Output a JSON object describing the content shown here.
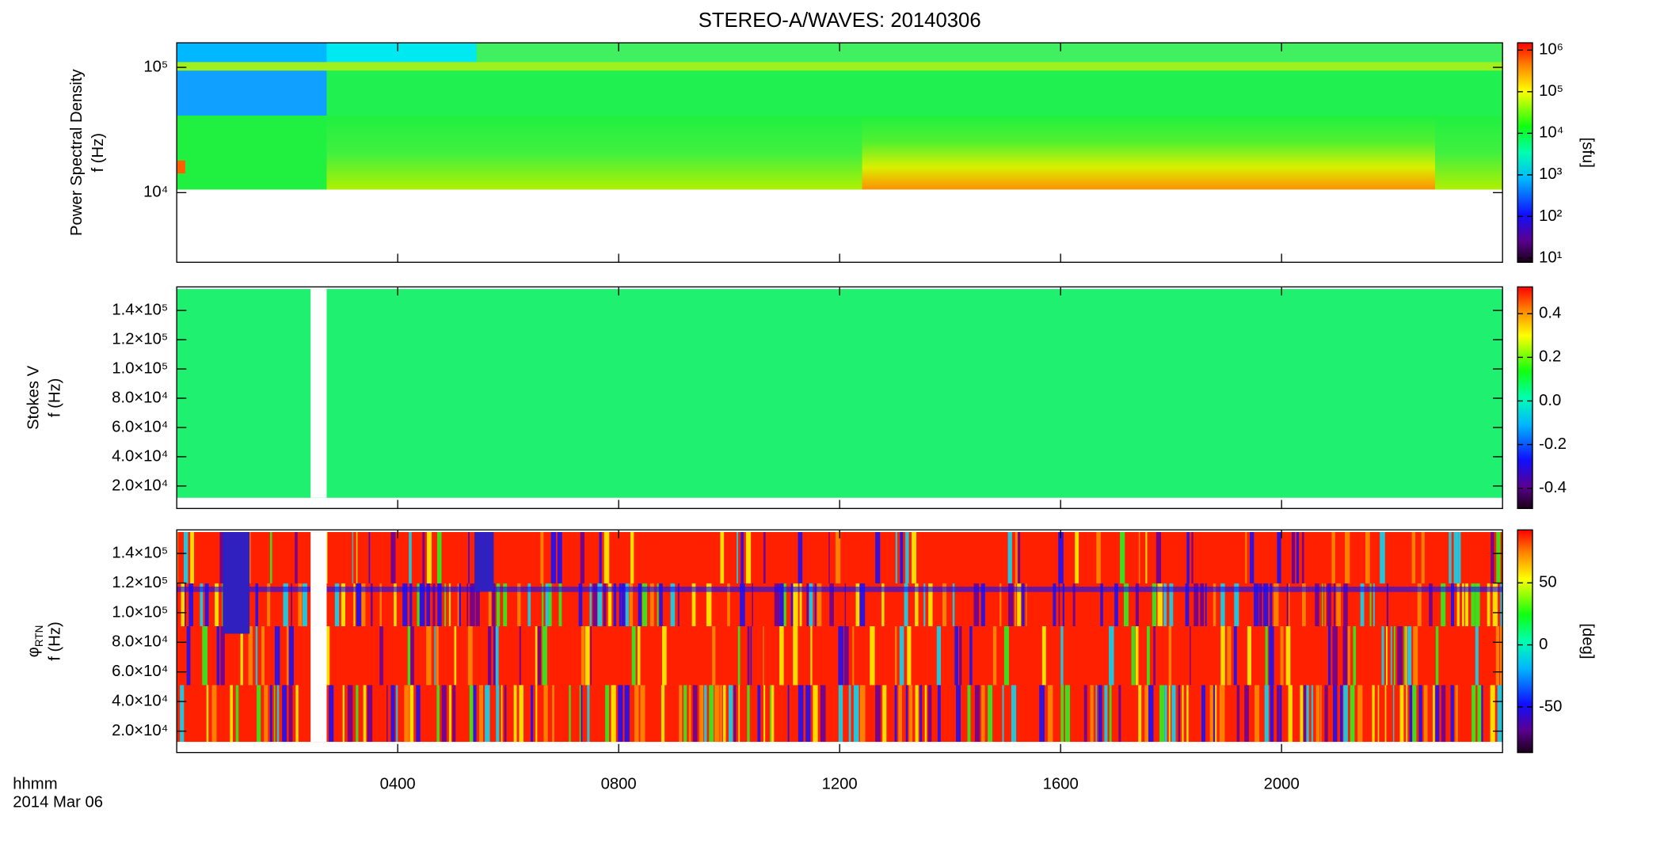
{
  "chart_data": [
    {
      "type": "heatmap",
      "title": "STEREO-A/WAVES: 20140306",
      "ylabel_top": "Power Spectral Density",
      "ylabel": "f (Hz)",
      "yscale": "log",
      "ylim": [
        2780,
        157000
      ],
      "yticks": [
        {
          "value": 10000,
          "label": "10⁴"
        },
        {
          "value": 100000,
          "label": "10⁵"
        }
      ],
      "xlim": [
        0,
        24
      ],
      "xticks": [
        {
          "value": 4,
          "label": "0400"
        },
        {
          "value": 8,
          "label": "0800"
        },
        {
          "value": 12,
          "label": "1200"
        },
        {
          "value": 16,
          "label": "1600"
        },
        {
          "value": 20,
          "label": "2000"
        }
      ],
      "colorbar": {
        "label": "[sfu]",
        "scale": "log",
        "lim": [
          7.9,
          1500000
        ],
        "ticks": [
          {
            "value": 10,
            "label": "10¹"
          },
          {
            "value": 100,
            "label": "10²"
          },
          {
            "value": 1000,
            "label": "10³"
          },
          {
            "value": 10000,
            "label": "10⁴"
          },
          {
            "value": 100000,
            "label": "10⁵"
          },
          {
            "value": 1000000,
            "label": "10⁶"
          }
        ]
      }
    },
    {
      "type": "heatmap",
      "quantity": "Stokes V",
      "ylabel": "f (Hz)",
      "yscale": "linear",
      "ylim": [
        4630,
        156100
      ],
      "yticks": [
        {
          "value": 20000,
          "label": "2.0×10⁴"
        },
        {
          "value": 40000,
          "label": "4.0×10⁴"
        },
        {
          "value": 60000,
          "label": "6.0×10⁴"
        },
        {
          "value": 80000,
          "label": "8.0×10⁴"
        },
        {
          "value": 100000,
          "label": "1.0×10⁵"
        },
        {
          "value": 120000,
          "label": "1.2×10⁵"
        },
        {
          "value": 140000,
          "label": "1.4×10⁵"
        }
      ],
      "xlim": [
        0,
        24
      ],
      "colorbar": {
        "scale": "linear",
        "lim": [
          -0.493,
          0.523
        ],
        "ticks": [
          -0.4,
          -0.2,
          {
            "value": 0,
            "label": "0.0"
          },
          0.2,
          0.4
        ]
      }
    },
    {
      "type": "heatmap",
      "quantity": "φ",
      "quantity_subscript": "RTN",
      "ylabel": "f (Hz)",
      "yscale": "linear",
      "ylim": [
        5540,
        155900
      ],
      "yticks": [
        {
          "value": 20000,
          "label": "2.0×10⁴"
        },
        {
          "value": 40000,
          "label": "4.0×10⁴"
        },
        {
          "value": 60000,
          "label": "6.0×10⁴"
        },
        {
          "value": 80000,
          "label": "8.0×10⁴"
        },
        {
          "value": 100000,
          "label": "1.0×10⁵"
        },
        {
          "value": 120000,
          "label": "1.2×10⁵"
        },
        {
          "value": 140000,
          "label": "1.4×10⁵"
        }
      ],
      "xlim": [
        0,
        24
      ],
      "xlabel": "hhmm",
      "date": "2014 Mar 06",
      "colorbar": {
        "label": "[deg]",
        "scale": "linear",
        "lim": [
          -86.8,
          92.7
        ],
        "ticks": [
          -50,
          0,
          50
        ]
      }
    }
  ]
}
